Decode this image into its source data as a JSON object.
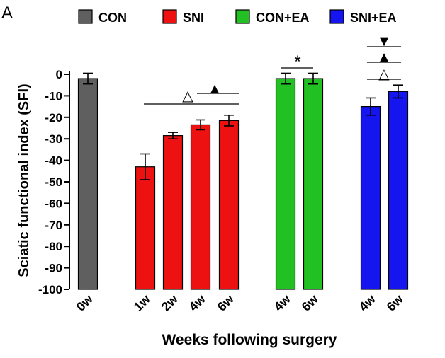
{
  "panel_label": "A",
  "colors": {
    "CON": "#5f5f5f",
    "SNI": "#ee1111",
    "CON+EA": "#22c022",
    "SNI+EA": "#1515f0",
    "axis": "#000000"
  },
  "chart_data": {
    "type": "bar",
    "title": "",
    "xlabel": "Weeks following surgery",
    "ylabel": "Sciatic functional index (SFI)",
    "ylim": [
      -100,
      0
    ],
    "yticks": [
      0,
      -10,
      -20,
      -30,
      -40,
      -50,
      -60,
      -70,
      -80,
      -90,
      -100
    ],
    "legend": [
      "CON",
      "SNI",
      "CON+EA",
      "SNI+EA"
    ],
    "legend_position": "top",
    "bars": [
      {
        "group": "CON",
        "label": "0w",
        "value": -2,
        "error": 2.5
      },
      {
        "group": "SNI",
        "label": "1w",
        "value": -43,
        "error": 6
      },
      {
        "group": "SNI",
        "label": "2w",
        "value": -28.5,
        "error": 1.5
      },
      {
        "group": "SNI",
        "label": "4w",
        "value": -23.5,
        "error": 2.3
      },
      {
        "group": "SNI",
        "label": "6w",
        "value": -21.5,
        "error": 2.5
      },
      {
        "group": "CON+EA",
        "label": "4w",
        "value": -2,
        "error": 2.5
      },
      {
        "group": "CON+EA",
        "label": "6w",
        "value": -2,
        "error": 2.5
      },
      {
        "group": "SNI+EA",
        "label": "4w",
        "value": -15,
        "error": 4
      },
      {
        "group": "SNI+EA",
        "label": "6w",
        "value": -8,
        "error": 3
      }
    ],
    "annotations": [
      {
        "symbol": "△",
        "description": "SNI 1w vs 4w/6w"
      },
      {
        "symbol": "▲",
        "description": "SNI 4w vs 6w"
      },
      {
        "symbol": "*",
        "description": "CON+EA 4w vs 6w"
      },
      {
        "symbol": "▼",
        "description": "SNI+EA 4w vs 6w"
      },
      {
        "symbol": "▲",
        "description": "SNI+EA 4w vs 6w"
      },
      {
        "symbol": "△",
        "description": "SNI+EA 4w vs 6w"
      }
    ]
  }
}
